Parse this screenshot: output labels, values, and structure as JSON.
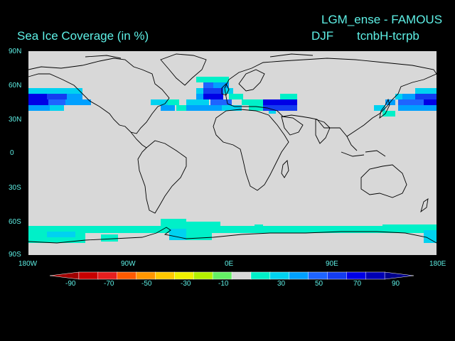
{
  "header": {
    "experiment": "LGM_ense - FAMOUS",
    "title": "Sea Ice Coverage (in %)",
    "season": "DJF",
    "difference": "tcnbH-tcrpb"
  },
  "axes": {
    "lat_labels": [
      "90N",
      "60N",
      "30N",
      "0",
      "30S",
      "60S",
      "90S"
    ],
    "lon_labels": [
      "180W",
      "90W",
      "0E",
      "90E",
      "180E"
    ]
  },
  "colorbar": {
    "tick_labels": [
      "-90",
      "-70",
      "-50",
      "-30",
      "-10",
      "30",
      "50",
      "70",
      "90"
    ],
    "colors": [
      "#a00000",
      "#c80000",
      "#e61e1e",
      "#ff5a00",
      "#ff9600",
      "#ffc800",
      "#f0f000",
      "#b4f000",
      "#64f064",
      "#d8d8d8",
      "#00f0c8",
      "#00d2f0",
      "#00a0ff",
      "#1e64ff",
      "#143cf0",
      "#0000e6",
      "#0000b4",
      "#00008c"
    ]
  },
  "colors": {
    "land_ocean_background": "#d8d8d8",
    "coastline": "#000000",
    "text": "#5ef0e6"
  }
}
